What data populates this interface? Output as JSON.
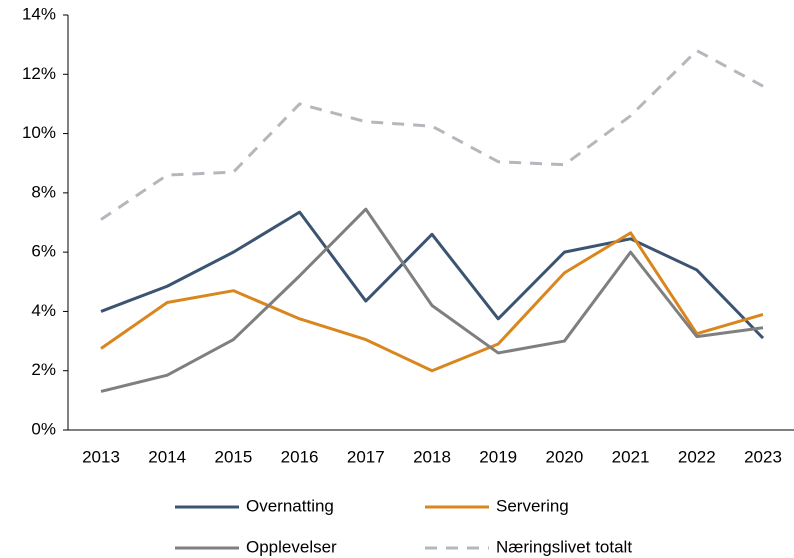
{
  "chart_data": {
    "type": "line",
    "categories": [
      "2013",
      "2014",
      "2015",
      "2016",
      "2017",
      "2018",
      "2019",
      "2020",
      "2021",
      "2022",
      "2023"
    ],
    "series": [
      {
        "name": "Overnatting",
        "color": "#3b5471",
        "values": [
          4.0,
          4.85,
          6.0,
          7.35,
          4.35,
          6.6,
          3.75,
          6.0,
          6.45,
          5.4,
          3.1
        ]
      },
      {
        "name": "Servering",
        "color": "#d9861f",
        "values": [
          2.75,
          4.3,
          4.7,
          3.75,
          3.05,
          2.0,
          2.9,
          5.3,
          6.65,
          3.25,
          3.9
        ]
      },
      {
        "name": "Opplevelser",
        "color": "#7f7f7f",
        "values": [
          1.3,
          1.85,
          3.05,
          5.2,
          7.45,
          4.2,
          2.6,
          3.0,
          6.0,
          3.15,
          3.45
        ]
      },
      {
        "name": "Næringslivet totalt",
        "color": "#b4b8bd",
        "dashed": true,
        "values": [
          7.1,
          8.6,
          8.7,
          11.0,
          10.4,
          10.25,
          9.05,
          8.95,
          10.6,
          12.8,
          11.6
        ]
      }
    ],
    "ylim": [
      0,
      14
    ],
    "yticks": [
      {
        "value": 0,
        "label": "0%"
      },
      {
        "value": 2,
        "label": "2%"
      },
      {
        "value": 4,
        "label": "4%"
      },
      {
        "value": 6,
        "label": "6%"
      },
      {
        "value": 8,
        "label": "8%"
      },
      {
        "value": 10,
        "label": "10%"
      },
      {
        "value": 12,
        "label": "12%"
      },
      {
        "value": 14,
        "label": "14%"
      }
    ],
    "grid": false,
    "legend": "bottom"
  }
}
